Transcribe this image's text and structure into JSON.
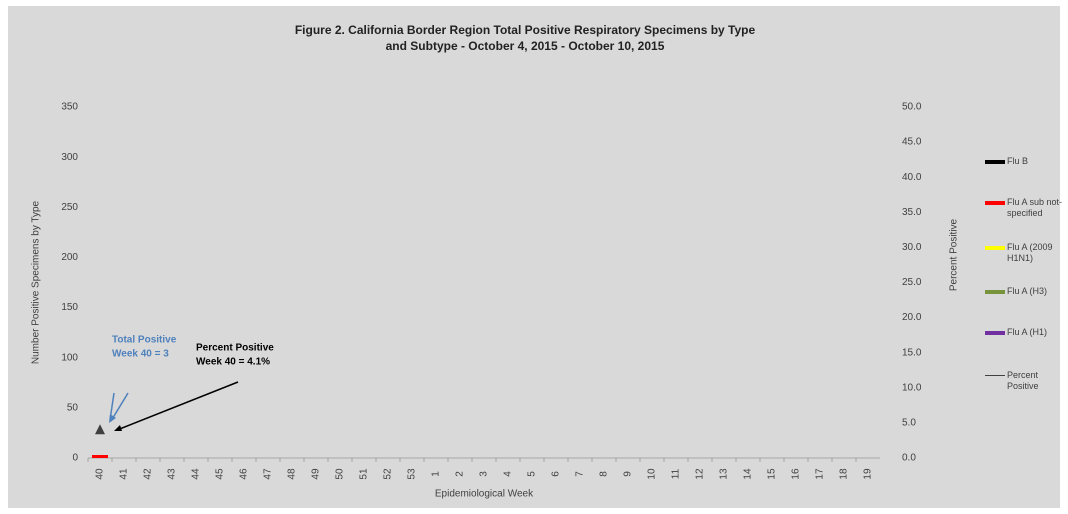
{
  "chart_data": {
    "type": "bar",
    "title": "Figure 2. California Border Region Total Positive Respiratory Specimens by Type and Subtype - October 4, 2015 - October 10, 2015",
    "x_label": "Epidemiological Week",
    "y_label": "Number Positive Specimens by Type",
    "y2_label": "Percent Positive",
    "stacked": true,
    "categories": [
      "40",
      "41",
      "42",
      "43",
      "44",
      "45",
      "46",
      "47",
      "48",
      "49",
      "50",
      "51",
      "52",
      "53",
      "1",
      "2",
      "3",
      "4",
      "5",
      "6",
      "7",
      "8",
      "9",
      "10",
      "11",
      "12",
      "13",
      "14",
      "15",
      "16",
      "17",
      "18",
      "19"
    ],
    "series": [
      {
        "name": "Flu B",
        "color": "#000000",
        "values": [
          0,
          null,
          null,
          null,
          null,
          null,
          null,
          null,
          null,
          null,
          null,
          null,
          null,
          null,
          null,
          null,
          null,
          null,
          null,
          null,
          null,
          null,
          null,
          null,
          null,
          null,
          null,
          null,
          null,
          null,
          null,
          null,
          null
        ]
      },
      {
        "name": "Flu A sub not-specified",
        "color": "#ff0000",
        "values": [
          3,
          null,
          null,
          null,
          null,
          null,
          null,
          null,
          null,
          null,
          null,
          null,
          null,
          null,
          null,
          null,
          null,
          null,
          null,
          null,
          null,
          null,
          null,
          null,
          null,
          null,
          null,
          null,
          null,
          null,
          null,
          null,
          null
        ]
      },
      {
        "name": "Flu A (2009 H1N1)",
        "color": "#ffff00",
        "values": [
          0,
          null,
          null,
          null,
          null,
          null,
          null,
          null,
          null,
          null,
          null,
          null,
          null,
          null,
          null,
          null,
          null,
          null,
          null,
          null,
          null,
          null,
          null,
          null,
          null,
          null,
          null,
          null,
          null,
          null,
          null,
          null,
          null
        ]
      },
      {
        "name": "Flu A (H3)",
        "color": "#77933c",
        "values": [
          0,
          null,
          null,
          null,
          null,
          null,
          null,
          null,
          null,
          null,
          null,
          null,
          null,
          null,
          null,
          null,
          null,
          null,
          null,
          null,
          null,
          null,
          null,
          null,
          null,
          null,
          null,
          null,
          null,
          null,
          null,
          null,
          null
        ]
      },
      {
        "name": "Flu A (H1)",
        "color": "#7030a0",
        "values": [
          0,
          null,
          null,
          null,
          null,
          null,
          null,
          null,
          null,
          null,
          null,
          null,
          null,
          null,
          null,
          null,
          null,
          null,
          null,
          null,
          null,
          null,
          null,
          null,
          null,
          null,
          null,
          null,
          null,
          null,
          null,
          null,
          null
        ]
      },
      {
        "name": "Percent Positive",
        "type": "line",
        "axis": "y2",
        "color": "#404040",
        "values": [
          4.1,
          null,
          null,
          null,
          null,
          null,
          null,
          null,
          null,
          null,
          null,
          null,
          null,
          null,
          null,
          null,
          null,
          null,
          null,
          null,
          null,
          null,
          null,
          null,
          null,
          null,
          null,
          null,
          null,
          null,
          null,
          null,
          null
        ]
      }
    ],
    "ylim": [
      0,
      350
    ],
    "yticks": [
      0,
      50,
      100,
      150,
      200,
      250,
      300,
      350
    ],
    "y2lim": [
      0,
      50
    ],
    "y2ticks": [
      {
        "value": 0,
        "label": "0.0"
      },
      {
        "value": 5,
        "label": "5.0"
      },
      {
        "value": 10,
        "label": "10.0"
      },
      {
        "value": 15,
        "label": "15.0"
      },
      {
        "value": 20,
        "label": "20.0"
      },
      {
        "value": 25,
        "label": "25.0"
      },
      {
        "value": 30,
        "label": "30.0"
      },
      {
        "value": 35,
        "label": "35.0"
      },
      {
        "value": 40,
        "label": "40.0"
      },
      {
        "value": 45,
        "label": "45.0"
      },
      {
        "value": 50,
        "label": "50.0"
      }
    ],
    "legend": "right",
    "annotations": [
      {
        "lines": [
          "Total Positive",
          "Week 40 = 3"
        ],
        "color": "#4f81bd"
      },
      {
        "lines": [
          "Percent Positive",
          "Week 40 = 4.1%"
        ],
        "color": "#000000"
      }
    ]
  }
}
